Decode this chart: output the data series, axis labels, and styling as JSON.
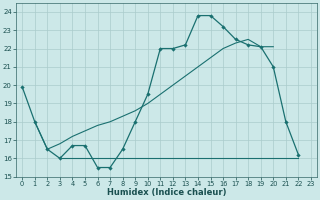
{
  "xlabel": "Humidex (Indice chaleur)",
  "background_color": "#cce8e8",
  "grid_color": "#aacccc",
  "line_color": "#1a7070",
  "xlim": [
    -0.5,
    23.5
  ],
  "ylim": [
    15,
    24.5
  ],
  "yticks": [
    15,
    16,
    17,
    18,
    19,
    20,
    21,
    22,
    23,
    24
  ],
  "xticks": [
    0,
    1,
    2,
    3,
    4,
    5,
    6,
    7,
    8,
    9,
    10,
    11,
    12,
    13,
    14,
    15,
    16,
    17,
    18,
    19,
    20,
    21,
    22,
    23
  ],
  "curve1_x": [
    0,
    1,
    2,
    3,
    4,
    5,
    6,
    7,
    8,
    9,
    10,
    11,
    12,
    13,
    14,
    15,
    16,
    17,
    18,
    19,
    20,
    21,
    22
  ],
  "curve1_y": [
    19.9,
    18.0,
    16.5,
    16.0,
    16.7,
    16.7,
    15.5,
    15.5,
    16.5,
    18.0,
    19.5,
    22.0,
    22.0,
    22.2,
    23.8,
    23.8,
    23.2,
    22.5,
    22.2,
    22.1,
    21.0,
    18.0,
    16.2
  ],
  "curve2_x": [
    1,
    2,
    3,
    4,
    5,
    6,
    7,
    8,
    9,
    10,
    11,
    12,
    13,
    14,
    15,
    16,
    17,
    18,
    19,
    20
  ],
  "curve2_y": [
    18.0,
    16.5,
    16.8,
    17.2,
    17.5,
    17.8,
    18.0,
    18.3,
    18.6,
    19.0,
    19.5,
    20.0,
    20.5,
    21.0,
    21.5,
    22.0,
    22.3,
    22.5,
    22.1,
    22.1
  ],
  "hline_x": [
    3,
    22
  ],
  "hline_y": [
    16.0,
    16.0
  ]
}
